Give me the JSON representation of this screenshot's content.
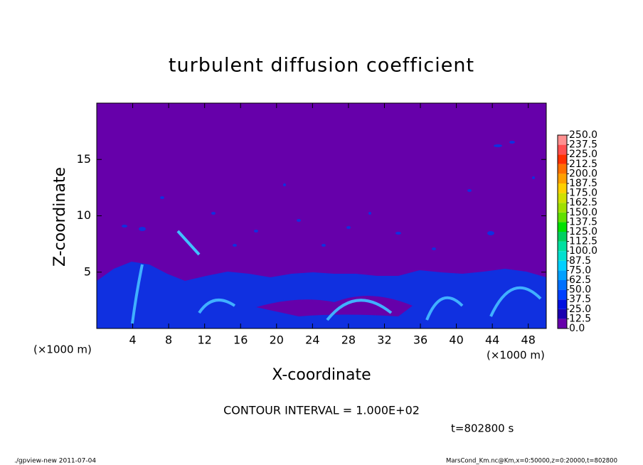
{
  "chart_data": {
    "type": "contour",
    "title": "turbulent diffusion coefficient",
    "x_label": "X-coordinate",
    "y_label": "Z-coordinate",
    "x_unit": "(×1000 m)",
    "y_unit": "(×1000 m)",
    "xlim": [
      0,
      50
    ],
    "xticks": [
      4,
      8,
      12,
      16,
      20,
      24,
      28,
      32,
      36,
      40,
      44,
      48
    ],
    "ylim": [
      0,
      20
    ],
    "yticks": [
      5,
      10,
      15
    ],
    "colorbar": {
      "ticks": [
        {
          "value": 0,
          "label": "0.0"
        },
        {
          "value": 12.5,
          "label": "12.5"
        },
        {
          "value": 25,
          "label": "25.0"
        },
        {
          "value": 37.5,
          "label": "37.5"
        },
        {
          "value": 50,
          "label": "50.0"
        },
        {
          "value": 62.5,
          "label": "62.5"
        },
        {
          "value": 75,
          "label": "75.0"
        },
        {
          "value": 87.5,
          "label": "87.5"
        },
        {
          "value": 100,
          "label": "100.0"
        },
        {
          "value": 112.5,
          "label": "112.5"
        },
        {
          "value": 125,
          "label": "125.0"
        },
        {
          "value": 137.5,
          "label": "137.5"
        },
        {
          "value": 150,
          "label": "150.0"
        },
        {
          "value": 162.5,
          "label": "162.5"
        },
        {
          "value": 175,
          "label": "175.0"
        },
        {
          "value": 187.5,
          "label": "187.5"
        },
        {
          "value": 200,
          "label": "200.0"
        },
        {
          "value": 212.5,
          "label": "212.5"
        },
        {
          "value": 225,
          "label": "225.0"
        },
        {
          "value": 237.5,
          "label": "237.5"
        },
        {
          "value": 250,
          "label": "250.0"
        }
      ],
      "colors": [
        "#6600aa",
        "#1a00b0",
        "#0010e0",
        "#0040ff",
        "#0070ff",
        "#00a0ff",
        "#00d0ff",
        "#00e0d0",
        "#00e0a0",
        "#00d060",
        "#00e000",
        "#60e000",
        "#a0e000",
        "#d0e000",
        "#ffd000",
        "#ffa000",
        "#ff7000",
        "#ff3000",
        "#ff5050",
        "#ff9090"
      ]
    },
    "contour_interval": "CONTOUR INTERVAL = 1.000E+02",
    "time": "t=802800 s",
    "footer_left": "./gpview-new  2011-07-04",
    "footer_right": "MarsCond_Km.nc@Km,x=0:50000,z=0:20000,t=802800"
  }
}
